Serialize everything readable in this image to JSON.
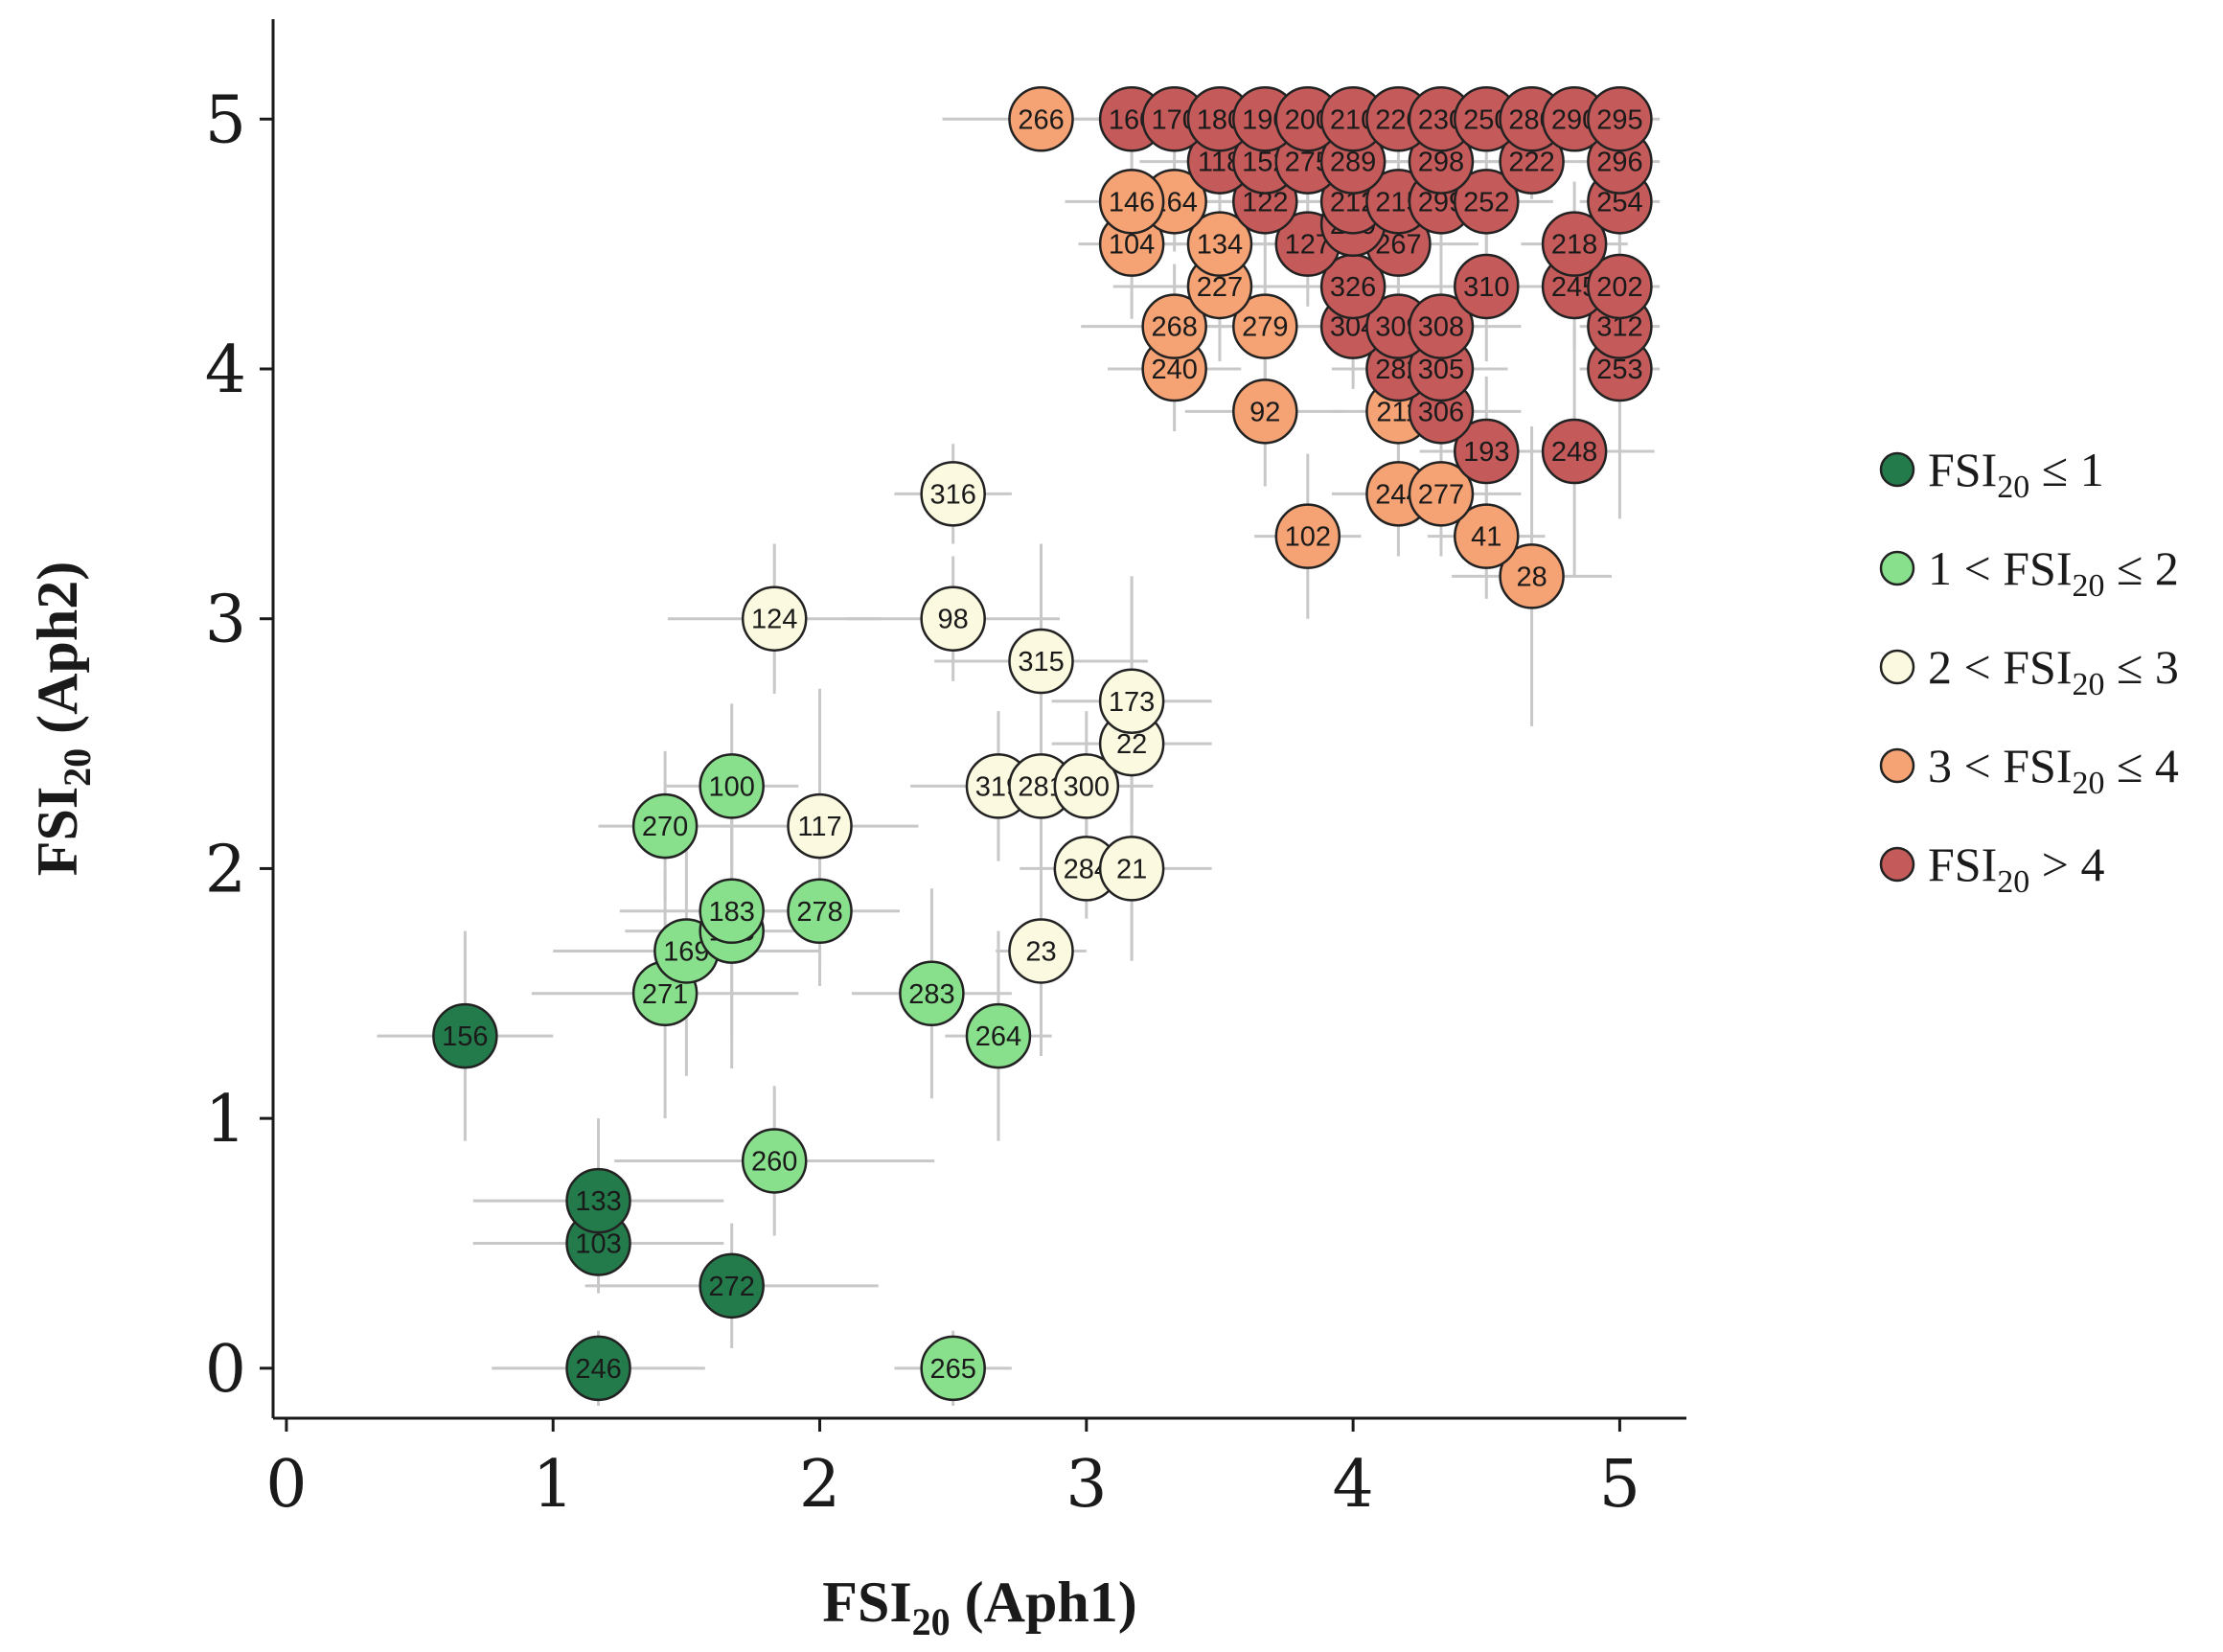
{
  "chart_data": {
    "type": "scatter",
    "xlabel": {
      "base": "FSI",
      "sub": "20",
      "rest": " (Aph1)"
    },
    "ylabel": {
      "base": "FSI",
      "sub": "20",
      "rest": " (Aph2)"
    },
    "xlim": [
      -0.05,
      5.25
    ],
    "ylim": [
      -0.2,
      5.4
    ],
    "xticks": [
      0,
      1,
      2,
      3,
      4,
      5
    ],
    "yticks": [
      0,
      1,
      2,
      3,
      4,
      5
    ],
    "categories": [
      {
        "key": "c1",
        "color": "#237b4b",
        "pre": "",
        "base": "FSI",
        "sub": "20",
        "post": " ≤ 1"
      },
      {
        "key": "c2",
        "color": "#88e08c",
        "pre": "1 < ",
        "base": "FSI",
        "sub": "20",
        "post": " ≤ 2"
      },
      {
        "key": "c3",
        "color": "#fbf9df",
        "pre": "2 < ",
        "base": "FSI",
        "sub": "20",
        "post": " ≤ 3"
      },
      {
        "key": "c4",
        "color": "#f5a274",
        "pre": "3 < ",
        "base": "FSI",
        "sub": "20",
        "post": " ≤ 4"
      },
      {
        "key": "c5",
        "color": "#c55a5a",
        "pre": "",
        "base": "FSI",
        "sub": "20",
        "post": " > 4"
      }
    ],
    "points": [
      {
        "label": "246",
        "x": 1.17,
        "y": 0.0,
        "ex": 0.4,
        "ey": 0.15,
        "cat": "c1"
      },
      {
        "label": "272",
        "x": 1.67,
        "y": 0.33,
        "ex": 0.55,
        "ey": 0.25,
        "cat": "c1"
      },
      {
        "label": "103",
        "x": 1.17,
        "y": 0.5,
        "ex": 0.47,
        "ey": 0.2,
        "cat": "c1"
      },
      {
        "label": "133",
        "x": 1.17,
        "y": 0.67,
        "ex": 0.47,
        "ey": 0.33,
        "cat": "c1"
      },
      {
        "label": "156",
        "x": 0.67,
        "y": 1.33,
        "ex": 0.33,
        "ey": 0.42,
        "cat": "c1"
      },
      {
        "label": "265",
        "x": 2.5,
        "y": 0.0,
        "ex": 0.22,
        "ey": 0.15,
        "cat": "c2"
      },
      {
        "label": "260",
        "x": 1.83,
        "y": 0.83,
        "ex": 0.6,
        "ey": 0.3,
        "cat": "c2"
      },
      {
        "label": "271",
        "x": 1.42,
        "y": 1.5,
        "ex": 0.5,
        "ey": 0.5,
        "cat": "c2"
      },
      {
        "label": "169",
        "x": 1.5,
        "y": 1.67,
        "ex": 0.5,
        "ey": 0.5,
        "cat": "c2"
      },
      {
        "label": "165",
        "x": 1.67,
        "y": 1.75,
        "ex": 0.4,
        "ey": 0.55,
        "cat": "c2"
      },
      {
        "label": "183",
        "x": 1.67,
        "y": 1.83,
        "ex": 0.42,
        "ey": 0.5,
        "cat": "c2"
      },
      {
        "label": "278",
        "x": 2.0,
        "y": 1.83,
        "ex": 0.3,
        "ey": 0.3,
        "cat": "c2"
      },
      {
        "label": "270",
        "x": 1.42,
        "y": 2.17,
        "ex": 0.25,
        "ey": 0.3,
        "cat": "c2"
      },
      {
        "label": "100",
        "x": 1.67,
        "y": 2.33,
        "ex": 0.25,
        "ey": 0.33,
        "cat": "c2"
      },
      {
        "label": "283",
        "x": 2.42,
        "y": 1.5,
        "ex": 0.3,
        "ey": 0.42,
        "cat": "c2"
      },
      {
        "label": "264",
        "x": 2.67,
        "y": 1.33,
        "ex": 0.2,
        "ey": 0.42,
        "cat": "c2"
      },
      {
        "label": "23",
        "x": 2.83,
        "y": 1.67,
        "ex": 0.17,
        "ey": 0.42,
        "cat": "c3"
      },
      {
        "label": "284",
        "x": 3.0,
        "y": 2.0,
        "ex": 0.25,
        "ey": 0.2,
        "cat": "c3"
      },
      {
        "label": "21",
        "x": 3.17,
        "y": 2.0,
        "ex": 0.3,
        "ey": 0.37,
        "cat": "c3"
      },
      {
        "label": "117",
        "x": 2.0,
        "y": 2.17,
        "ex": 0.37,
        "ey": 0.55,
        "cat": "c3"
      },
      {
        "label": "319",
        "x": 2.67,
        "y": 2.33,
        "ex": 0.33,
        "ey": 0.3,
        "cat": "c3"
      },
      {
        "label": "281",
        "x": 2.83,
        "y": 2.33,
        "ex": 0.3,
        "ey": 0.3,
        "cat": "c3"
      },
      {
        "label": "300",
        "x": 3.0,
        "y": 2.33,
        "ex": 0.25,
        "ey": 0.3,
        "cat": "c3"
      },
      {
        "label": "22",
        "x": 3.17,
        "y": 2.5,
        "ex": 0.3,
        "ey": 0.3,
        "cat": "c3"
      },
      {
        "label": "173",
        "x": 3.17,
        "y": 2.67,
        "ex": 0.3,
        "ey": 0.5,
        "cat": "c3"
      },
      {
        "label": "315",
        "x": 2.83,
        "y": 2.83,
        "ex": 0.4,
        "ey": 0.47,
        "cat": "c3"
      },
      {
        "label": "124",
        "x": 1.83,
        "y": 3.0,
        "ex": 0.4,
        "ey": 0.3,
        "cat": "c3"
      },
      {
        "label": "98",
        "x": 2.5,
        "y": 3.0,
        "ex": 0.4,
        "ey": 0.25,
        "cat": "c3"
      },
      {
        "label": "316",
        "x": 2.5,
        "y": 3.5,
        "ex": 0.22,
        "ey": 0.2,
        "cat": "c3"
      },
      {
        "label": "28",
        "x": 4.67,
        "y": 3.17,
        "ex": 0.3,
        "ey": 0.6,
        "cat": "c4"
      },
      {
        "label": "41",
        "x": 4.5,
        "y": 3.33,
        "ex": 0.22,
        "ey": 0.25,
        "cat": "c4"
      },
      {
        "label": "102",
        "x": 3.83,
        "y": 3.33,
        "ex": 0.2,
        "ey": 0.33,
        "cat": "c4"
      },
      {
        "label": "244",
        "x": 4.17,
        "y": 3.5,
        "ex": 0.25,
        "ey": 0.25,
        "cat": "c4"
      },
      {
        "label": "277",
        "x": 4.33,
        "y": 3.5,
        "ex": 0.3,
        "ey": 0.25,
        "cat": "c4"
      },
      {
        "label": "92",
        "x": 3.67,
        "y": 3.83,
        "ex": 0.3,
        "ey": 0.3,
        "cat": "c4"
      },
      {
        "label": "211",
        "x": 4.17,
        "y": 3.83,
        "ex": 0.25,
        "ey": 0.25,
        "cat": "c4"
      },
      {
        "label": "240",
        "x": 3.33,
        "y": 4.0,
        "ex": 0.25,
        "ey": 0.25,
        "cat": "c4"
      },
      {
        "label": "268",
        "x": 3.33,
        "y": 4.17,
        "ex": 0.35,
        "ey": 0.25,
        "cat": "c4"
      },
      {
        "label": "279",
        "x": 3.67,
        "y": 4.17,
        "ex": 0.3,
        "ey": 0.3,
        "cat": "c4"
      },
      {
        "label": "227",
        "x": 3.5,
        "y": 4.33,
        "ex": 0.4,
        "ey": 0.3,
        "cat": "c4"
      },
      {
        "label": "134",
        "x": 3.5,
        "y": 4.5,
        "ex": 0.3,
        "ey": 0.25,
        "cat": "c4"
      },
      {
        "label": "104",
        "x": 3.17,
        "y": 4.5,
        "ex": 0.2,
        "ey": 0.3,
        "cat": "c4"
      },
      {
        "label": "164",
        "x": 3.33,
        "y": 4.67,
        "ex": 0.25,
        "ey": 0.2,
        "cat": "c4"
      },
      {
        "label": "146",
        "x": 3.17,
        "y": 4.67,
        "ex": 0.25,
        "ey": 0.25,
        "cat": "c4"
      },
      {
        "label": "266",
        "x": 2.83,
        "y": 5.0,
        "ex": 0.37,
        "ey": 0.1,
        "cat": "c4"
      },
      {
        "label": "193",
        "x": 4.5,
        "y": 3.67,
        "ex": 0.25,
        "ey": 0.3,
        "cat": "c5"
      },
      {
        "label": "248",
        "x": 4.83,
        "y": 3.67,
        "ex": 0.3,
        "ey": 0.5,
        "cat": "c5"
      },
      {
        "label": "306",
        "x": 4.33,
        "y": 3.83,
        "ex": 0.3,
        "ey": 0.3,
        "cat": "c5"
      },
      {
        "label": "282",
        "x": 4.17,
        "y": 4.0,
        "ex": 0.25,
        "ey": 0.3,
        "cat": "c5"
      },
      {
        "label": "305",
        "x": 4.33,
        "y": 4.0,
        "ex": 0.25,
        "ey": 0.25,
        "cat": "c5"
      },
      {
        "label": "253",
        "x": 5.0,
        "y": 4.0,
        "ex": 0.15,
        "ey": 0.6,
        "cat": "c5"
      },
      {
        "label": "304",
        "x": 4.0,
        "y": 4.17,
        "ex": 0.3,
        "ey": 0.25,
        "cat": "c5"
      },
      {
        "label": "309",
        "x": 4.17,
        "y": 4.17,
        "ex": 0.3,
        "ey": 0.3,
        "cat": "c5"
      },
      {
        "label": "308",
        "x": 4.33,
        "y": 4.17,
        "ex": 0.3,
        "ey": 0.3,
        "cat": "c5"
      },
      {
        "label": "312",
        "x": 5.0,
        "y": 4.17,
        "ex": 0.15,
        "ey": 0.3,
        "cat": "c5"
      },
      {
        "label": "326",
        "x": 4.0,
        "y": 4.33,
        "ex": 0.25,
        "ey": 0.25,
        "cat": "c5"
      },
      {
        "label": "310",
        "x": 4.5,
        "y": 4.33,
        "ex": 0.3,
        "ey": 0.3,
        "cat": "c5"
      },
      {
        "label": "245",
        "x": 4.83,
        "y": 4.33,
        "ex": 0.2,
        "ey": 0.25,
        "cat": "c5"
      },
      {
        "label": "202",
        "x": 5.0,
        "y": 4.33,
        "ex": 0.15,
        "ey": 0.25,
        "cat": "c5"
      },
      {
        "label": "127",
        "x": 3.83,
        "y": 4.5,
        "ex": 0.3,
        "ey": 0.25,
        "cat": "c5"
      },
      {
        "label": "267",
        "x": 4.17,
        "y": 4.5,
        "ex": 0.3,
        "ey": 0.25,
        "cat": "c5"
      },
      {
        "label": "218",
        "x": 4.83,
        "y": 4.5,
        "ex": 0.2,
        "ey": 0.25,
        "cat": "c5"
      },
      {
        "label": "269",
        "x": 4.0,
        "y": 4.58,
        "ex": 0.25,
        "ey": 0.2,
        "cat": "c5"
      },
      {
        "label": "122",
        "x": 3.67,
        "y": 4.67,
        "ex": 0.3,
        "ey": 0.2,
        "cat": "c5"
      },
      {
        "label": "212",
        "x": 4.0,
        "y": 4.67,
        "ex": 0.25,
        "ey": 0.2,
        "cat": "c5"
      },
      {
        "label": "215",
        "x": 4.17,
        "y": 4.67,
        "ex": 0.25,
        "ey": 0.2,
        "cat": "c5"
      },
      {
        "label": "299",
        "x": 4.33,
        "y": 4.67,
        "ex": 0.25,
        "ey": 0.2,
        "cat": "c5"
      },
      {
        "label": "252",
        "x": 4.5,
        "y": 4.67,
        "ex": 0.25,
        "ey": 0.2,
        "cat": "c5"
      },
      {
        "label": "254",
        "x": 5.0,
        "y": 4.67,
        "ex": 0.15,
        "ey": 0.2,
        "cat": "c5"
      },
      {
        "label": "118",
        "x": 3.5,
        "y": 4.83,
        "ex": 0.3,
        "ey": 0.15,
        "cat": "c5"
      },
      {
        "label": "152",
        "x": 3.67,
        "y": 4.83,
        "ex": 0.3,
        "ey": 0.15,
        "cat": "c5"
      },
      {
        "label": "275",
        "x": 3.83,
        "y": 4.83,
        "ex": 0.3,
        "ey": 0.15,
        "cat": "c5"
      },
      {
        "label": "289",
        "x": 4.0,
        "y": 4.83,
        "ex": 0.25,
        "ey": 0.15,
        "cat": "c5"
      },
      {
        "label": "298",
        "x": 4.33,
        "y": 4.83,
        "ex": 0.25,
        "ey": 0.15,
        "cat": "c5"
      },
      {
        "label": "222",
        "x": 4.67,
        "y": 4.83,
        "ex": 0.2,
        "ey": 0.15,
        "cat": "c5"
      },
      {
        "label": "296",
        "x": 5.0,
        "y": 4.83,
        "ex": 0.15,
        "ey": 0.15,
        "cat": "c5"
      },
      {
        "label": "160",
        "x": 3.17,
        "y": 5.0,
        "ex": 0.3,
        "ey": 0.1,
        "cat": "c5"
      },
      {
        "label": "170",
        "x": 3.33,
        "y": 5.0,
        "ex": 0.3,
        "ey": 0.1,
        "cat": "c5"
      },
      {
        "label": "180",
        "x": 3.5,
        "y": 5.0,
        "ex": 0.3,
        "ey": 0.1,
        "cat": "c5"
      },
      {
        "label": "190",
        "x": 3.67,
        "y": 5.0,
        "ex": 0.3,
        "ey": 0.1,
        "cat": "c5"
      },
      {
        "label": "200",
        "x": 3.83,
        "y": 5.0,
        "ex": 0.3,
        "ey": 0.1,
        "cat": "c5"
      },
      {
        "label": "210",
        "x": 4.0,
        "y": 5.0,
        "ex": 0.3,
        "ey": 0.1,
        "cat": "c5"
      },
      {
        "label": "220",
        "x": 4.17,
        "y": 5.0,
        "ex": 0.3,
        "ey": 0.1,
        "cat": "c5"
      },
      {
        "label": "230",
        "x": 4.33,
        "y": 5.0,
        "ex": 0.3,
        "ey": 0.1,
        "cat": "c5"
      },
      {
        "label": "250",
        "x": 4.5,
        "y": 5.0,
        "ex": 0.3,
        "ey": 0.1,
        "cat": "c5"
      },
      {
        "label": "280",
        "x": 4.67,
        "y": 5.0,
        "ex": 0.25,
        "ey": 0.1,
        "cat": "c5"
      },
      {
        "label": "290",
        "x": 4.83,
        "y": 5.0,
        "ex": 0.2,
        "ey": 0.1,
        "cat": "c5"
      },
      {
        "label": "295",
        "x": 5.0,
        "y": 5.0,
        "ex": 0.15,
        "ey": 0.1,
        "cat": "c5"
      }
    ]
  }
}
